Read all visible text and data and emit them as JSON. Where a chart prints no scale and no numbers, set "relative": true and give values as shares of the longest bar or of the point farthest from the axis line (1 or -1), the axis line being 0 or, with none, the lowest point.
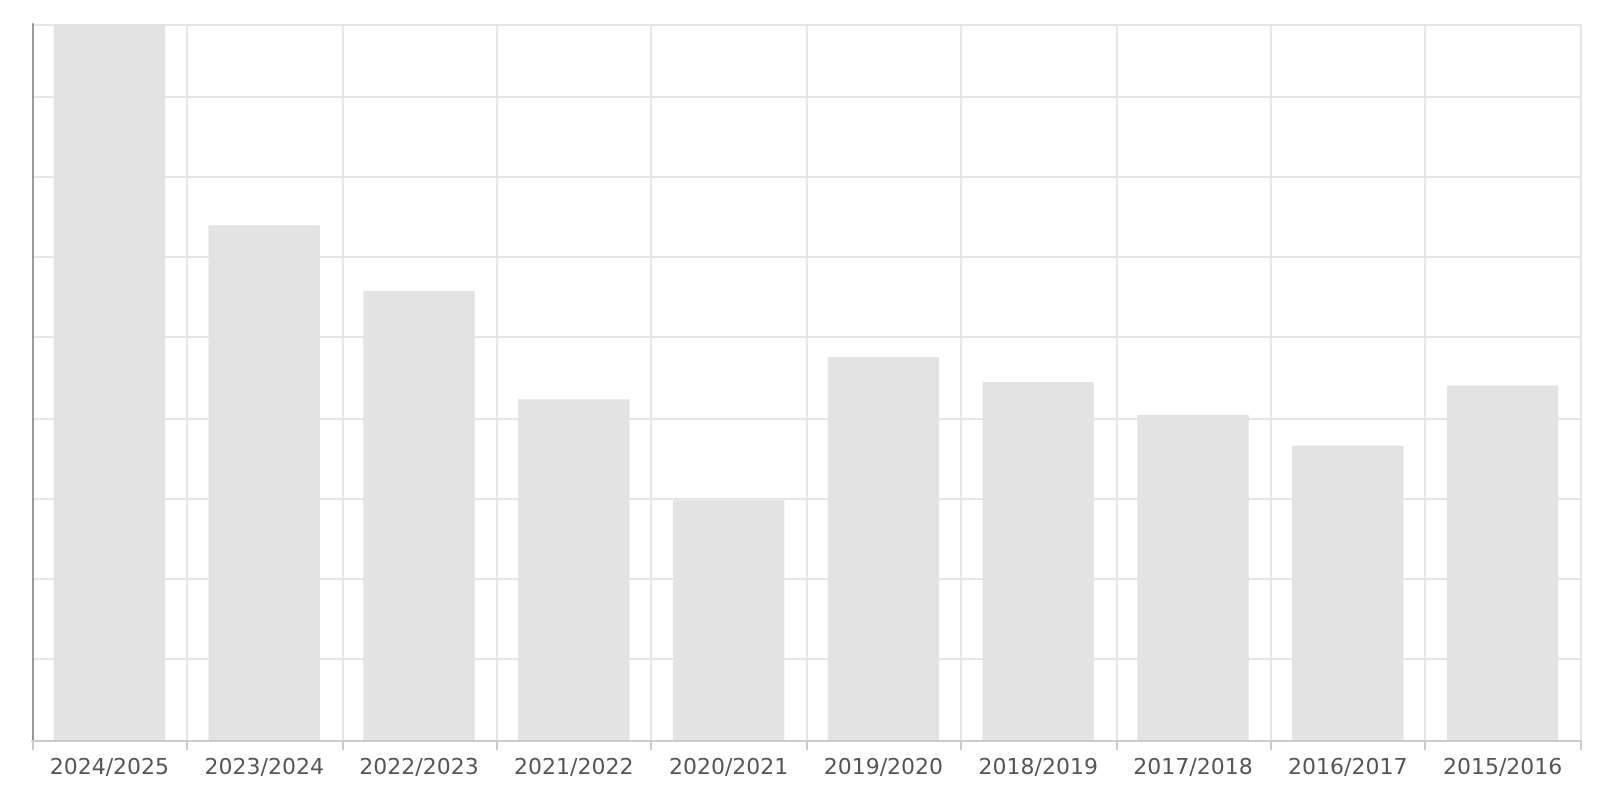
{
  "chart_data": {
    "type": "bar",
    "relative": true,
    "grid": true,
    "color": "#e3e3e3",
    "categories": [
      "2024/2025",
      "2023/2024",
      "2022/2023",
      "2021/2022",
      "2020/2021",
      "2019/2020",
      "2018/2019",
      "2017/2018",
      "2016/2017",
      "2015/2016"
    ],
    "values": [
      1,
      0.719,
      0.627,
      0.476,
      0.335,
      0.535,
      0.5,
      0.454,
      0.411,
      0.495
    ]
  }
}
